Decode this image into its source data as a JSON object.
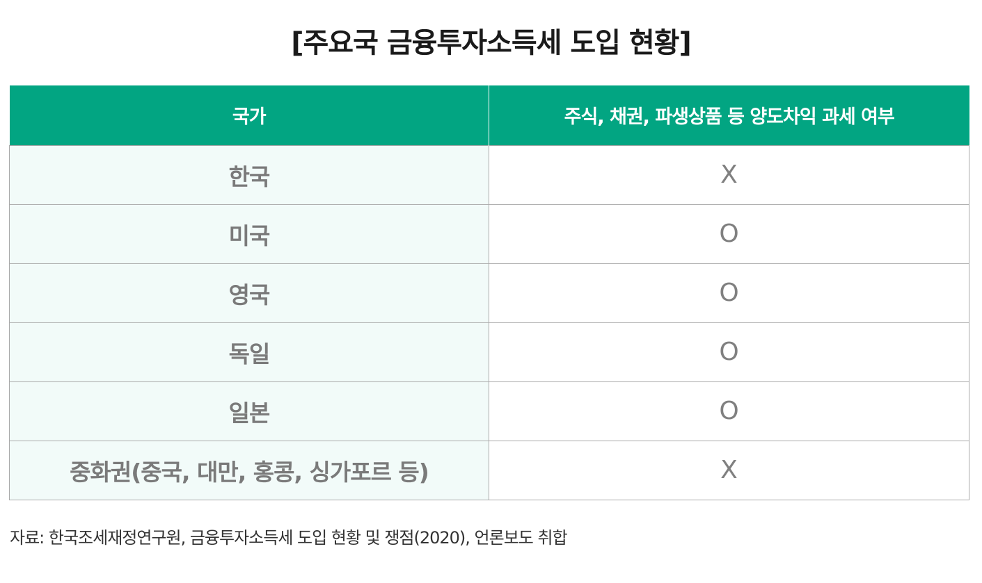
{
  "title": "[주요국 금융투자소득세 도입 현황]",
  "table": {
    "headers": [
      "국가",
      "주식, 채권, 파생상품 등 양도차익 과세 여부"
    ],
    "rows": [
      {
        "country": "한국",
        "taxed": "X"
      },
      {
        "country": "미국",
        "taxed": "O"
      },
      {
        "country": "영국",
        "taxed": "O"
      },
      {
        "country": "독일",
        "taxed": "O"
      },
      {
        "country": "일본",
        "taxed": "O"
      },
      {
        "country": "중화권(중국, 대만, 홍콩, 싱가포르 등)",
        "taxed": "X"
      }
    ]
  },
  "source": "자료: 한국조세재정연구원, 금융투자소득세 도입 현황 및 쟁점(2020), 언론보도 취합",
  "colors": {
    "header_bg": "#02a582",
    "header_text": "#ffffff",
    "country_cell_bg": "#f2fbf9",
    "cell_text": "#7a7a7a",
    "border": "#a9a9a9"
  }
}
